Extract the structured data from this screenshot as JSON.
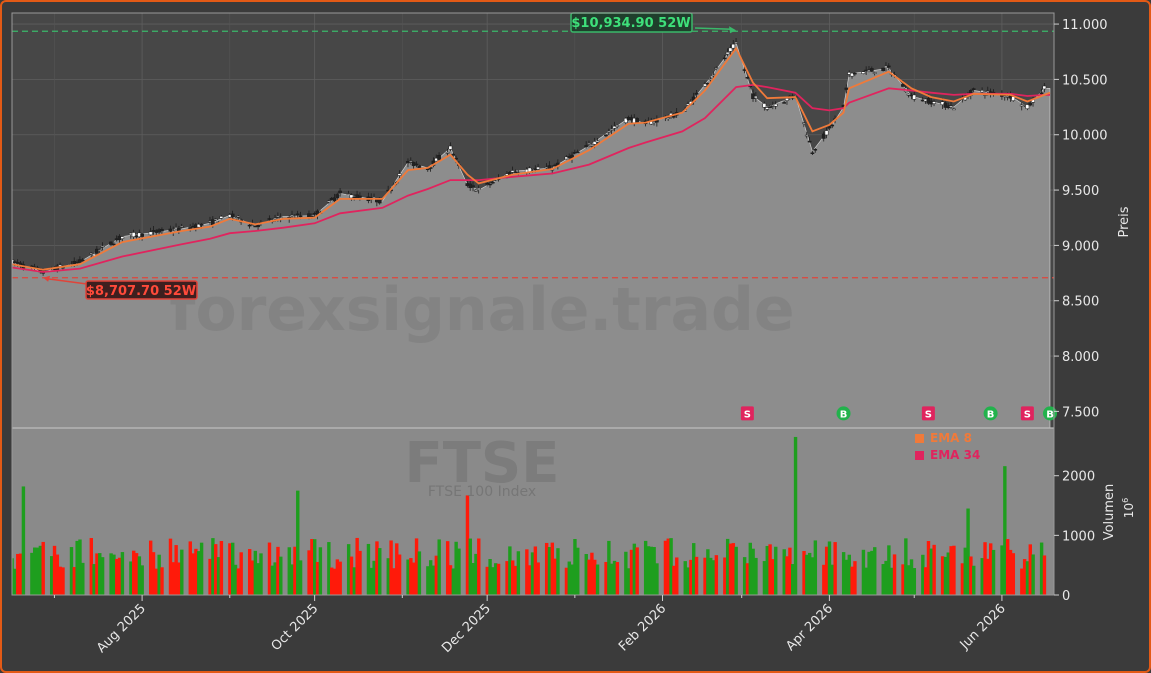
{
  "chart_data": {
    "type": "candlestick",
    "watermark": "forexsignale.trade",
    "symbol_watermark": "FTSE",
    "symbol_name": "FTSE 100 Index",
    "price_axis": {
      "label": "Preis",
      "ylim": [
        7350,
        11100
      ],
      "ticks": [
        7500,
        8000,
        8500,
        9000,
        9500,
        10000,
        10500,
        11000
      ],
      "tick_labels": [
        "7.500",
        "8.000",
        "8.500",
        "9.000",
        "9.500",
        "10.000",
        "10.500",
        "11.000"
      ]
    },
    "volume_axis": {
      "label": "Volumen",
      "multiplier_base": "10",
      "multiplier_exp": "6",
      "ylim": [
        0,
        2800
      ],
      "ticks": [
        0,
        1000,
        2000
      ],
      "tick_labels": [
        "0",
        "1000",
        "2000"
      ]
    },
    "x_axis": {
      "ticks": [
        {
          "date": "2025-08-01",
          "label": "Aug 2025"
        },
        {
          "date": "2025-10-01",
          "label": "Oct 2025"
        },
        {
          "date": "2025-12-01",
          "label": "Dec 2025"
        },
        {
          "date": "2026-02-01",
          "label": "Feb 2026"
        },
        {
          "date": "2026-04-01",
          "label": "Apr 2026"
        },
        {
          "date": "2026-06-01",
          "label": "Jun 2026"
        }
      ],
      "minor_ticks": [
        "2025-07-01",
        "2025-09-01",
        "2025-11-01",
        "2026-01-01",
        "2026-03-01",
        "2026-05-01"
      ],
      "start": "2025-06-16",
      "end": "2026-06-18"
    },
    "high_52w": {
      "value": 10934.9,
      "label": "$10,934.90 52W",
      "date": "2026-02-27"
    },
    "low_52w": {
      "value": 8707.7,
      "label": "$8,707.70 52W",
      "date": "2025-06-27"
    },
    "legend": [
      {
        "name": "EMA 8",
        "color": "#f07a3a"
      },
      {
        "name": "EMA 34",
        "color": "#e0245e"
      }
    ],
    "last_close": 10420,
    "price_path": [
      [
        "2025-06-16",
        8850
      ],
      [
        "2025-06-27",
        8760
      ],
      [
        "2025-07-10",
        8850
      ],
      [
        "2025-07-25",
        9080
      ],
      [
        "2025-08-15",
        9150
      ],
      [
        "2025-08-25",
        9200
      ],
      [
        "2025-09-01",
        9270
      ],
      [
        "2025-09-10",
        9180
      ],
      [
        "2025-09-20",
        9260
      ],
      [
        "2025-10-01",
        9270
      ],
      [
        "2025-10-10",
        9470
      ],
      [
        "2025-10-25",
        9400
      ],
      [
        "2025-11-03",
        9750
      ],
      [
        "2025-11-10",
        9700
      ],
      [
        "2025-11-18",
        9880
      ],
      [
        "2025-11-24",
        9550
      ],
      [
        "2025-11-28",
        9500
      ],
      [
        "2025-12-10",
        9670
      ],
      [
        "2025-12-24",
        9700
      ],
      [
        "2026-01-06",
        9900
      ],
      [
        "2026-01-20",
        10150
      ],
      [
        "2026-01-26",
        10100
      ],
      [
        "2026-02-08",
        10200
      ],
      [
        "2026-02-16",
        10450
      ],
      [
        "2026-02-27",
        10830
      ],
      [
        "2026-03-05",
        10350
      ],
      [
        "2026-03-10",
        10250
      ],
      [
        "2026-03-20",
        10350
      ],
      [
        "2026-03-26",
        9850
      ],
      [
        "2026-04-01",
        10050
      ],
      [
        "2026-04-06",
        10250
      ],
      [
        "2026-04-08",
        10550
      ],
      [
        "2026-04-22",
        10600
      ],
      [
        "2026-04-30",
        10350
      ],
      [
        "2026-05-07",
        10300
      ],
      [
        "2026-05-15",
        10250
      ],
      [
        "2026-05-22",
        10400
      ],
      [
        "2026-06-04",
        10350
      ],
      [
        "2026-06-10",
        10250
      ],
      [
        "2026-06-16",
        10420
      ],
      [
        "2026-06-18",
        10420
      ]
    ],
    "ema8": [
      [
        "2025-06-16",
        8830
      ],
      [
        "2025-06-27",
        8780
      ],
      [
        "2025-07-10",
        8830
      ],
      [
        "2025-07-25",
        9030
      ],
      [
        "2025-08-15",
        9130
      ],
      [
        "2025-08-25",
        9170
      ],
      [
        "2025-09-01",
        9240
      ],
      [
        "2025-09-10",
        9190
      ],
      [
        "2025-09-20",
        9240
      ],
      [
        "2025-10-01",
        9250
      ],
      [
        "2025-10-10",
        9420
      ],
      [
        "2025-10-25",
        9420
      ],
      [
        "2025-11-03",
        9680
      ],
      [
        "2025-11-10",
        9700
      ],
      [
        "2025-11-18",
        9820
      ],
      [
        "2025-11-24",
        9640
      ],
      [
        "2025-11-28",
        9560
      ],
      [
        "2025-12-10",
        9640
      ],
      [
        "2025-12-24",
        9690
      ],
      [
        "2026-01-06",
        9860
      ],
      [
        "2026-01-20",
        10100
      ],
      [
        "2026-01-26",
        10110
      ],
      [
        "2026-02-08",
        10200
      ],
      [
        "2026-02-16",
        10400
      ],
      [
        "2026-02-27",
        10780
      ],
      [
        "2026-03-05",
        10470
      ],
      [
        "2026-03-10",
        10330
      ],
      [
        "2026-03-20",
        10340
      ],
      [
        "2026-03-26",
        10030
      ],
      [
        "2026-04-01",
        10090
      ],
      [
        "2026-04-06",
        10200
      ],
      [
        "2026-04-08",
        10420
      ],
      [
        "2026-04-22",
        10570
      ],
      [
        "2026-04-30",
        10420
      ],
      [
        "2026-05-07",
        10340
      ],
      [
        "2026-05-15",
        10300
      ],
      [
        "2026-05-22",
        10370
      ],
      [
        "2026-06-04",
        10360
      ],
      [
        "2026-06-10",
        10300
      ],
      [
        "2026-06-16",
        10360
      ],
      [
        "2026-06-18",
        10380
      ]
    ],
    "ema34": [
      [
        "2025-06-16",
        8800
      ],
      [
        "2025-06-27",
        8760
      ],
      [
        "2025-07-10",
        8790
      ],
      [
        "2025-07-25",
        8900
      ],
      [
        "2025-08-15",
        9010
      ],
      [
        "2025-08-25",
        9060
      ],
      [
        "2025-09-01",
        9110
      ],
      [
        "2025-09-10",
        9130
      ],
      [
        "2025-09-20",
        9160
      ],
      [
        "2025-10-01",
        9200
      ],
      [
        "2025-10-10",
        9290
      ],
      [
        "2025-10-25",
        9340
      ],
      [
        "2025-11-03",
        9450
      ],
      [
        "2025-11-10",
        9510
      ],
      [
        "2025-11-18",
        9590
      ],
      [
        "2025-11-24",
        9590
      ],
      [
        "2025-11-28",
        9590
      ],
      [
        "2025-12-10",
        9620
      ],
      [
        "2025-12-24",
        9650
      ],
      [
        "2026-01-06",
        9730
      ],
      [
        "2026-01-20",
        9880
      ],
      [
        "2026-01-26",
        9930
      ],
      [
        "2026-02-08",
        10030
      ],
      [
        "2026-02-16",
        10150
      ],
      [
        "2026-02-27",
        10430
      ],
      [
        "2026-03-05",
        10450
      ],
      [
        "2026-03-10",
        10430
      ],
      [
        "2026-03-20",
        10380
      ],
      [
        "2026-03-26",
        10240
      ],
      [
        "2026-04-01",
        10220
      ],
      [
        "2026-04-06",
        10240
      ],
      [
        "2026-04-08",
        10290
      ],
      [
        "2026-04-22",
        10420
      ],
      [
        "2026-04-30",
        10400
      ],
      [
        "2026-05-07",
        10380
      ],
      [
        "2026-05-15",
        10360
      ],
      [
        "2026-05-22",
        10370
      ],
      [
        "2026-06-04",
        10370
      ],
      [
        "2026-06-10",
        10350
      ],
      [
        "2026-06-16",
        10360
      ],
      [
        "2026-06-18",
        10360
      ]
    ],
    "signals": [
      {
        "date": "2026-03-03",
        "label": "S",
        "color": "#e0245e",
        "shape": "square"
      },
      {
        "date": "2026-04-06",
        "label": "B",
        "color": "#22b24c",
        "shape": "circle"
      },
      {
        "date": "2026-05-06",
        "label": "S",
        "color": "#e0245e",
        "shape": "square"
      },
      {
        "date": "2026-05-28",
        "label": "B",
        "color": "#22b24c",
        "shape": "circle"
      },
      {
        "date": "2026-06-10",
        "label": "S",
        "color": "#e0245e",
        "shape": "square"
      },
      {
        "date": "2026-06-18",
        "label": "B",
        "color": "#22b24c",
        "shape": "circle"
      }
    ],
    "volume_spikes": [
      [
        "2025-06-20",
        1820
      ],
      [
        "2025-09-25",
        1750
      ],
      [
        "2025-11-24",
        1670
      ],
      [
        "2025-12-20",
        1640
      ],
      [
        "2026-03-20",
        2650
      ],
      [
        "2026-03-22",
        1650
      ],
      [
        "2026-06-02",
        2160
      ],
      [
        "2026-05-20",
        1450
      ]
    ],
    "volume_base": 800,
    "colors": {
      "frame": "#e35a16",
      "background": "#3b3b3b",
      "plot_background": "#8a8a8a",
      "area_fill": "#8d8d8d",
      "ema8": "#f07a3a",
      "ema34": "#e0245e",
      "high_line": "#3ab86a",
      "low_line": "#e0443a",
      "volume_up": "#1e9e1e",
      "volume_down": "#ff1a0a"
    }
  }
}
